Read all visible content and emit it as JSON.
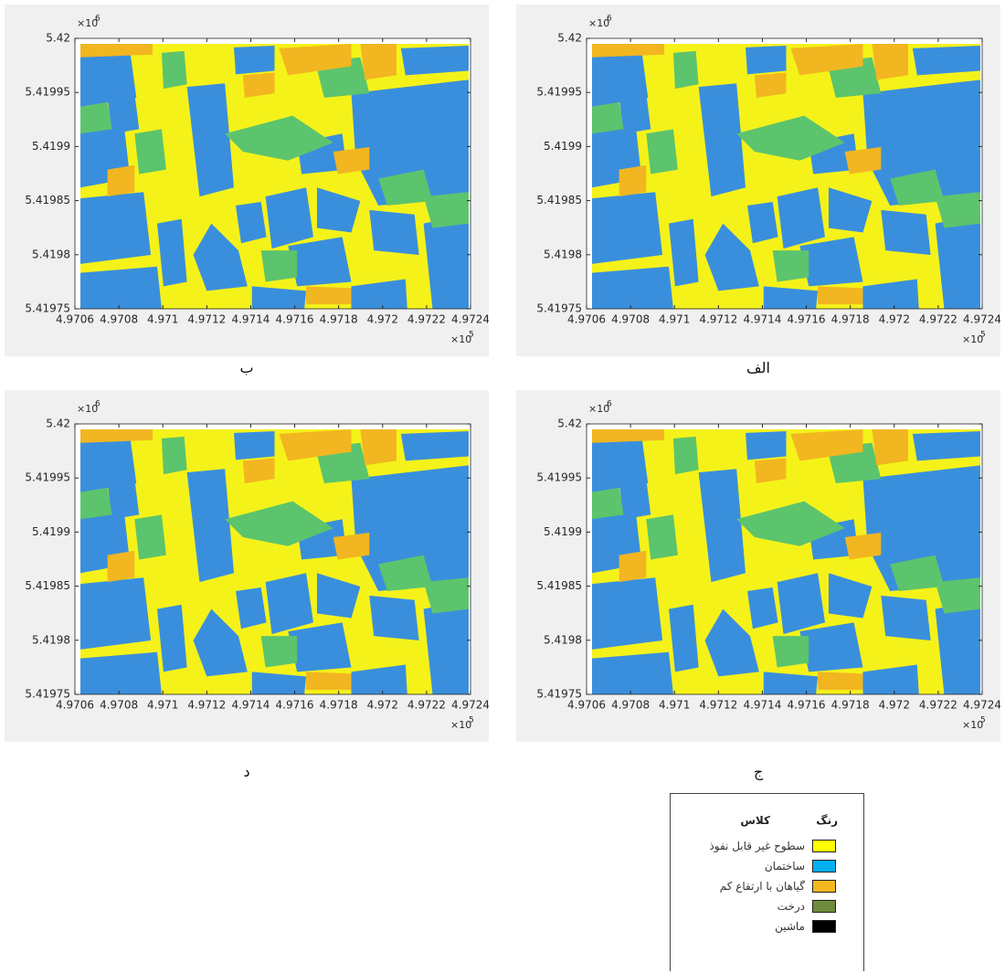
{
  "chart_data": [
    {
      "type": "map",
      "caption": "الف",
      "xlim": [
        4.9706,
        4.9724
      ],
      "ylim": [
        5.41975,
        5.42
      ],
      "xticks": [
        4.9706,
        4.9708,
        4.971,
        4.9712,
        4.9714,
        4.9716,
        4.9718,
        4.972,
        4.9722,
        4.9724
      ],
      "yticks": [
        5.41975,
        5.4198,
        5.41985,
        5.4199,
        5.41995,
        5.42
      ],
      "x_multiplier": {
        "base": "×10",
        "exponent": "5"
      },
      "y_multiplier": {
        "base": "×10",
        "exponent": "6"
      }
    },
    {
      "type": "map",
      "caption": "ب",
      "xlim": [
        4.9706,
        4.9724
      ],
      "ylim": [
        5.41975,
        5.42
      ],
      "xticks": [
        4.9706,
        4.9708,
        4.971,
        4.9712,
        4.9714,
        4.9716,
        4.9718,
        4.972,
        4.9722,
        4.9724
      ],
      "yticks": [
        5.41975,
        5.4198,
        5.41985,
        5.4199,
        5.41995,
        5.42
      ],
      "x_multiplier": {
        "base": "×10",
        "exponent": "5"
      },
      "y_multiplier": {
        "base": "×10",
        "exponent": "6"
      }
    },
    {
      "type": "map",
      "caption": "ج",
      "xlim": [
        4.9706,
        4.9724
      ],
      "ylim": [
        5.41975,
        5.42
      ],
      "xticks": [
        4.9706,
        4.9708,
        4.971,
        4.9712,
        4.9714,
        4.9716,
        4.9718,
        4.972,
        4.9722,
        4.9724
      ],
      "yticks": [
        5.41975,
        5.4198,
        5.41985,
        5.4199,
        5.41995,
        5.42
      ],
      "x_multiplier": {
        "base": "×10",
        "exponent": "5"
      },
      "y_multiplier": {
        "base": "×10",
        "exponent": "6"
      }
    },
    {
      "type": "map",
      "caption": "د",
      "xlim": [
        4.9706,
        4.9724
      ],
      "ylim": [
        5.41975,
        5.42
      ],
      "xticks": [
        4.9706,
        4.9708,
        4.971,
        4.9712,
        4.9714,
        4.9716,
        4.9718,
        4.972,
        4.9722,
        4.9724
      ],
      "yticks": [
        5.41975,
        5.4198,
        5.41985,
        5.4199,
        5.41995,
        5.42
      ],
      "x_multiplier": {
        "base": "×10",
        "exponent": "5"
      },
      "y_multiplier": {
        "base": "×10",
        "exponent": "6"
      }
    }
  ],
  "legend": {
    "color_header": "رنگ",
    "class_header": "کلاس",
    "items": [
      {
        "name": "سطوح غیر قابل نفوذ",
        "color": "#ffff00"
      },
      {
        "name": "ساختمان",
        "color": "#00b0f0"
      },
      {
        "name": "گیاهان با ارتفاع کم",
        "color": "#f5b820"
      },
      {
        "name": "درخت",
        "color": "#6e8b3d"
      },
      {
        "name": "ماشین",
        "color": "#000000"
      }
    ]
  }
}
